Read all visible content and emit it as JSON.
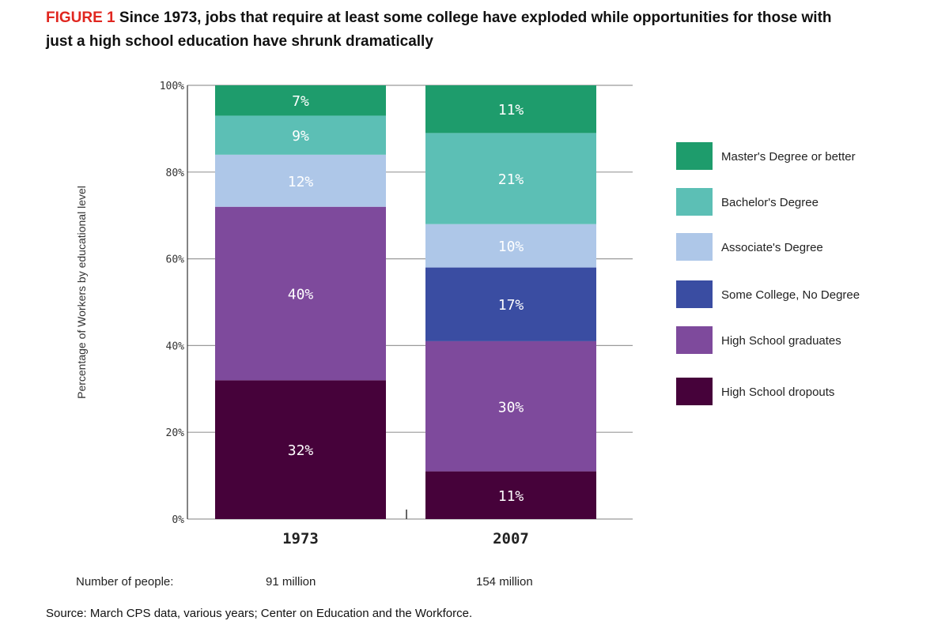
{
  "title_label": "FIGURE 1",
  "title_text": "Since 1973, jobs that require at least some college have exploded while opportunities for those with just a high school education have shrunk dramatically",
  "footer": {
    "number_label": "Number of people:",
    "values": [
      "91 million",
      "154 million"
    ]
  },
  "source": "Source: March CPS data, various years; Center on Education and the Workforce.",
  "chart_data": {
    "type": "bar",
    "stacked": true,
    "title": "Since 1973, jobs that require at least some college have exploded while opportunities for those with just a high school education have shrunk dramatically",
    "xlabel": "",
    "ylabel": "Percentage of Workers by educational level",
    "ylim": [
      0,
      100
    ],
    "yticks": [
      "0%",
      "20%",
      "40%",
      "60%",
      "80%",
      "100%"
    ],
    "grid": true,
    "legend_position": "right",
    "categories": [
      "1973",
      "2007"
    ],
    "series": [
      {
        "name": "High School dropouts",
        "color": "#46023a",
        "values": [
          32,
          11
        ],
        "labels": [
          "32%",
          "11%"
        ]
      },
      {
        "name": "High School graduates",
        "color": "#7e4a9c",
        "values": [
          40,
          30
        ],
        "labels": [
          "40%",
          "30%"
        ]
      },
      {
        "name": "Some College, No Degree",
        "color": "#3a4da2",
        "values": [
          0,
          17
        ],
        "labels": [
          "",
          "17%"
        ]
      },
      {
        "name": "Associate's Degree",
        "color": "#aec7e8",
        "values": [
          12,
          10
        ],
        "labels": [
          "12%",
          "10%"
        ]
      },
      {
        "name": "Bachelor's Degree",
        "color": "#5cbfb5",
        "values": [
          9,
          21
        ],
        "labels": [
          "9%",
          "21%"
        ]
      },
      {
        "name": "Master's Degree or better",
        "color": "#1e9c6c",
        "values": [
          7,
          11
        ],
        "labels": [
          "7%",
          "11%"
        ]
      }
    ],
    "legend_order": [
      "Master's Degree or better",
      "Bachelor's Degree",
      "Associate's Degree",
      "Some College, No Degree",
      "High School graduates",
      "High School dropouts"
    ]
  }
}
